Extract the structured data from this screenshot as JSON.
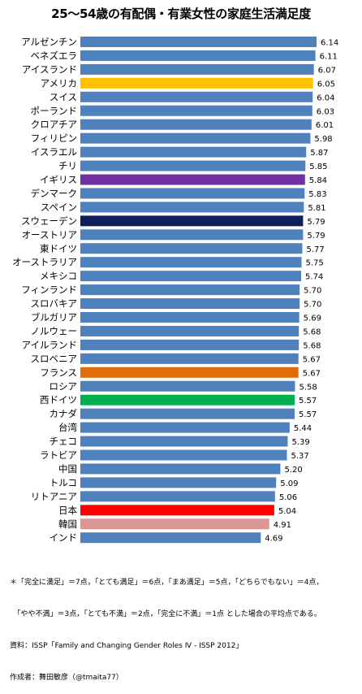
{
  "title": "25～54歳の有配偶・有業女性の家庭生活満足度",
  "footnote": {
    "line1": "＊「完全に満足」＝7点，「とても満足」＝6点，「まあ満足」＝5点，「どちらでもない」＝4点，",
    "line2": "　「やや不満」＝3点，「とても不満」＝2点，「完全に不満」＝1点 とした場合の平均点である。",
    "source": "資料：ISSP「Family and Changing Gender Roles Ⅳ - ISSP 2012」",
    "author": "作成者：舞田敏彦（@tmaita77）"
  },
  "colors": {
    "default": "#4f81bd",
    "usa": "#ffc000",
    "uk": "#7030a0",
    "sweden": "#0f1f5c",
    "france": "#e36c09",
    "west_germany": "#00b050",
    "japan": "#ff0000",
    "korea": "#d99694"
  },
  "chart_data": {
    "type": "bar",
    "orientation": "horizontal",
    "categories": [
      "アルゼンチン",
      "ベネズエラ",
      "アイスランド",
      "アメリカ",
      "スイス",
      "ポーランド",
      "クロアチア",
      "フィリピン",
      "イスラエル",
      "チリ",
      "イギリス",
      "デンマーク",
      "スペイン",
      "スウェーデン",
      "オーストリア",
      "東ドイツ",
      "オーストラリア",
      "メキシコ",
      "フィンランド",
      "スロバキア",
      "ブルガリア",
      "ノルウェー",
      "アイルランド",
      "スロベニア",
      "フランス",
      "ロシア",
      "西ドイツ",
      "カナダ",
      "台湾",
      "チェコ",
      "ラトビア",
      "中国",
      "トルコ",
      "リトアニア",
      "日本",
      "韓国",
      "インド"
    ],
    "values": [
      6.14,
      6.11,
      6.07,
      6.05,
      6.04,
      6.03,
      6.01,
      5.98,
      5.87,
      5.85,
      5.84,
      5.83,
      5.81,
      5.79,
      5.79,
      5.77,
      5.75,
      5.74,
      5.7,
      5.7,
      5.69,
      5.68,
      5.68,
      5.67,
      5.67,
      5.58,
      5.57,
      5.57,
      5.44,
      5.39,
      5.37,
      5.2,
      5.09,
      5.06,
      5.04,
      4.91,
      4.69
    ],
    "labels": [
      "6.14",
      "6.11",
      "6.07",
      "6.05",
      "6.04",
      "6.03",
      "6.01",
      "5.98",
      "5.87",
      "5.85",
      "5.84",
      "5.83",
      "5.81",
      "5.79",
      "5.79",
      "5.77",
      "5.75",
      "5.74",
      "5.70",
      "5.70",
      "5.69",
      "5.68",
      "5.68",
      "5.67",
      "5.67",
      "5.58",
      "5.57",
      "5.57",
      "5.44",
      "5.39",
      "5.37",
      "5.20",
      "5.09",
      "5.06",
      "5.04",
      "4.91",
      "4.69"
    ],
    "highlights": {
      "アメリカ": "usa",
      "イギリス": "uk",
      "スウェーデン": "sweden",
      "フランス": "france",
      "西ドイツ": "west_germany",
      "日本": "japan",
      "韓国": "korea"
    }
  }
}
